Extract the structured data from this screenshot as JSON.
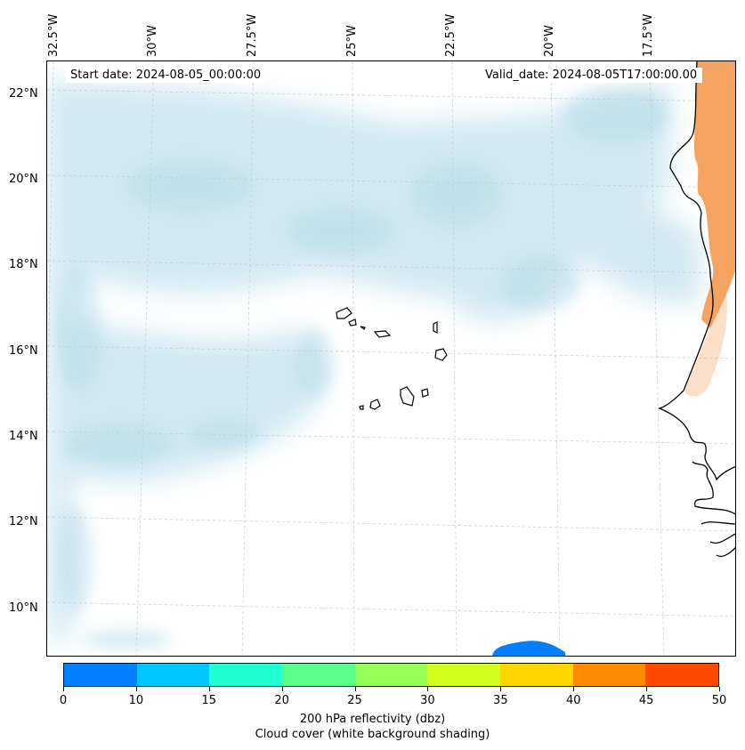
{
  "map": {
    "start_date_label": "Start date: 2024-08-05_00:00:00",
    "valid_date_label": "Valid_date: 2024-08-05T17:00:00.00",
    "lon_ticks": [
      "32.5°W",
      "30°W",
      "27.5°W",
      "25°W",
      "22.5°W",
      "20°W",
      "17.5°W"
    ],
    "lat_ticks": [
      "22°N",
      "20°N",
      "18°N",
      "16°N",
      "14°N",
      "12°N",
      "10°N"
    ],
    "features": [
      "Cape Verde islands",
      "West African coastline"
    ],
    "cloud_color": "#add8e6",
    "land_reflectivity_color": "#f4a460",
    "coast_color": "#000000"
  },
  "colorbar": {
    "tick_labels": [
      "0",
      "10",
      "15",
      "20",
      "25",
      "30",
      "35",
      "40",
      "45",
      "50"
    ],
    "colors": [
      "#0080ff",
      "#00c8ff",
      "#1effd2",
      "#5aff8c",
      "#96ff5a",
      "#d2ff1e",
      "#ffd700",
      "#ff8c00",
      "#ff4b00"
    ],
    "label": "200 hPa reflectivity (dbz)",
    "sublabel": "Cloud cover (white background shading)"
  }
}
